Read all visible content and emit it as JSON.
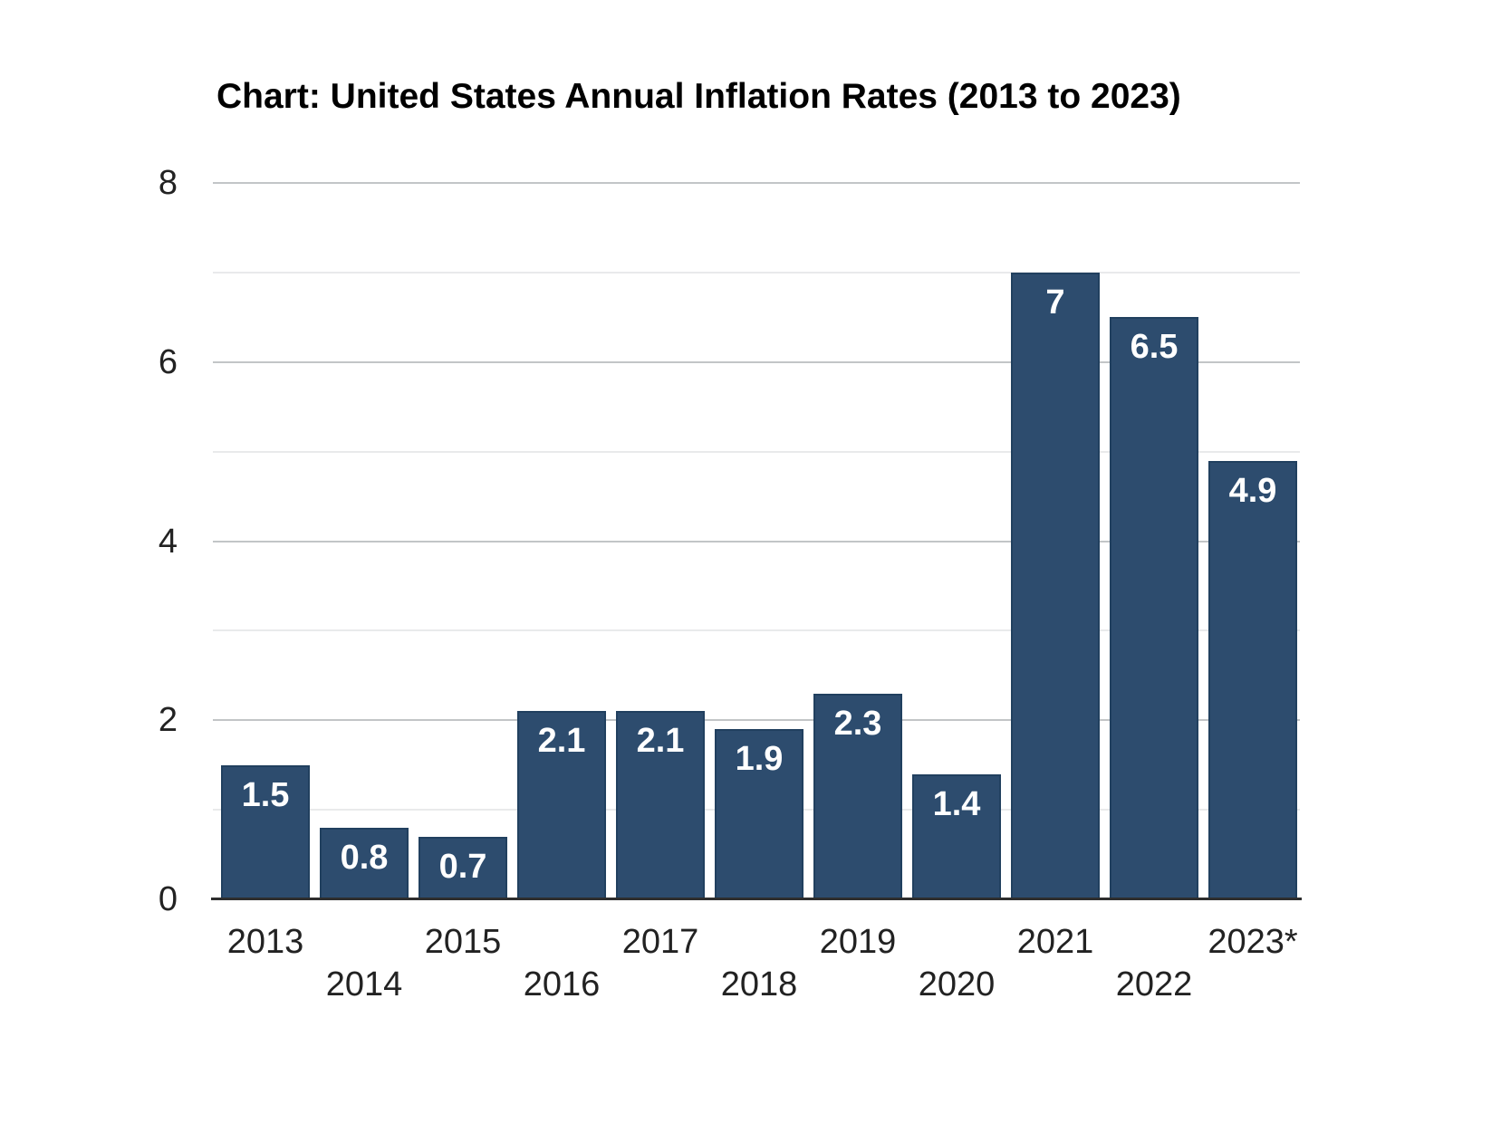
{
  "title": "Chart: United States Annual Inflation Rates (2013 to 2023)",
  "chart_data": {
    "type": "bar",
    "title": "Chart: United States Annual Inflation Rates (2013 to 2023)",
    "categories": [
      "2013",
      "2014",
      "2015",
      "2016",
      "2017",
      "2018",
      "2019",
      "2020",
      "2021",
      "2022",
      "2023*"
    ],
    "values": [
      1.5,
      0.8,
      0.7,
      2.1,
      2.1,
      1.9,
      2.3,
      1.4,
      7,
      6.5,
      4.9
    ],
    "value_labels": [
      "1.5",
      "0.8",
      "0.7",
      "2.1",
      "2.1",
      "1.9",
      "2.3",
      "1.4",
      "7",
      "6.5",
      "4.9"
    ],
    "xlabel": "",
    "ylabel": "",
    "ylim": [
      0,
      8
    ],
    "yticks": [
      0,
      2,
      4,
      6,
      8
    ],
    "minor_grid_step": 1,
    "grid": "horizontal",
    "legend_position": "none",
    "bar_color": "#2d4c6e",
    "bar_border_color": "#21405f",
    "value_label_color": "#ffffff",
    "major_grid_color": "#c2c5c7",
    "minor_grid_color": "#e9eaeb",
    "axis_line_color": "#2e2e2e",
    "tick_label_color": "#222222"
  }
}
